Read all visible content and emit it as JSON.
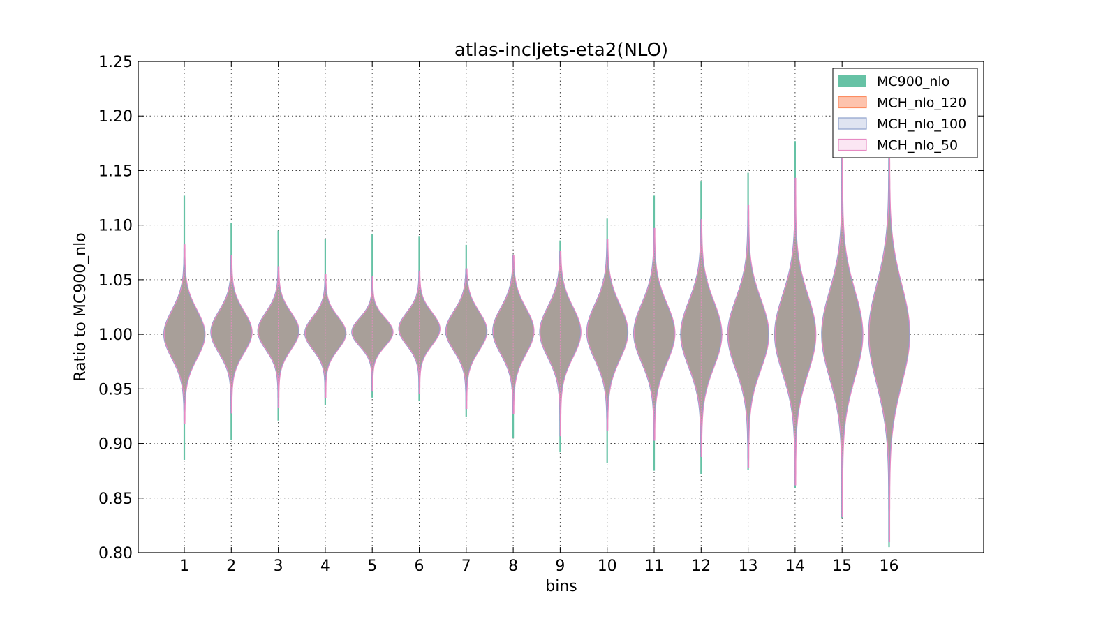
{
  "chart_data": {
    "type": "violin",
    "title": "atlas-incljets-eta2(NLO)",
    "xlabel": "bins",
    "ylabel": "Ratio to MC900_nlo",
    "ylim": [
      0.8,
      1.25
    ],
    "yticks": [
      "0.80",
      "0.85",
      "0.90",
      "0.95",
      "1.00",
      "1.05",
      "1.10",
      "1.15",
      "1.20",
      "1.25"
    ],
    "categories": [
      "1",
      "2",
      "3",
      "4",
      "5",
      "6",
      "7",
      "8",
      "9",
      "10",
      "11",
      "12",
      "13",
      "14",
      "15",
      "16"
    ],
    "grid": true,
    "legend_position": "top-right",
    "series": [
      {
        "name": "MC900_nlo",
        "color": "#66c2a5",
        "min": [
          0.885,
          0.903,
          0.921,
          0.935,
          0.942,
          0.939,
          0.924,
          0.905,
          0.892,
          0.882,
          0.875,
          0.872,
          0.876,
          0.859,
          0.832,
          0.805
        ],
        "max": [
          1.127,
          1.102,
          1.095,
          1.087,
          1.092,
          1.09,
          1.082,
          1.073,
          1.086,
          1.106,
          1.127,
          1.14,
          1.148,
          1.177,
          1.17,
          1.18
        ]
      },
      {
        "name": "MCH_nlo_120",
        "color": "#fc8d62",
        "min": [
          0.918,
          0.928,
          0.933,
          0.942,
          0.948,
          0.946,
          0.932,
          0.927,
          0.907,
          0.912,
          0.903,
          0.888,
          0.878,
          0.862,
          0.833,
          0.81
        ],
        "max": [
          1.082,
          1.072,
          1.062,
          1.055,
          1.053,
          1.058,
          1.06,
          1.072,
          1.076,
          1.087,
          1.097,
          1.105,
          1.118,
          1.143,
          1.162,
          1.17
        ]
      },
      {
        "name": "MCH_nlo_100",
        "color": "#8da0cb",
        "min": [
          0.918,
          0.928,
          0.933,
          0.942,
          0.948,
          0.946,
          0.932,
          0.927,
          0.907,
          0.912,
          0.903,
          0.888,
          0.878,
          0.862,
          0.833,
          0.81
        ],
        "max": [
          1.082,
          1.072,
          1.062,
          1.055,
          1.053,
          1.058,
          1.06,
          1.072,
          1.076,
          1.087,
          1.097,
          1.105,
          1.118,
          1.143,
          1.162,
          1.17
        ]
      },
      {
        "name": "MCH_nlo_50",
        "color": "#e78ac3",
        "min": [
          0.918,
          0.928,
          0.933,
          0.942,
          0.948,
          0.946,
          0.932,
          0.927,
          0.907,
          0.912,
          0.903,
          0.888,
          0.878,
          0.862,
          0.833,
          0.81
        ],
        "max": [
          1.082,
          1.072,
          1.062,
          1.055,
          1.053,
          1.058,
          1.06,
          1.072,
          1.076,
          1.087,
          1.097,
          1.105,
          1.118,
          1.143,
          1.162,
          1.17
        ]
      }
    ],
    "violin_sigma": [
      0.022,
      0.019,
      0.017,
      0.015,
      0.013,
      0.015,
      0.018,
      0.021,
      0.023,
      0.025,
      0.027,
      0.03,
      0.032,
      0.036,
      0.04,
      0.045
    ],
    "violin_center": [
      1.0,
      1.002,
      1.003,
      1.001,
      1.002,
      1.005,
      1.003,
      1.003,
      1.002,
      1.002,
      1.001,
      1.0,
      1.0,
      1.0,
      1.0,
      1.0
    ],
    "fill_color": "#a89f99"
  }
}
